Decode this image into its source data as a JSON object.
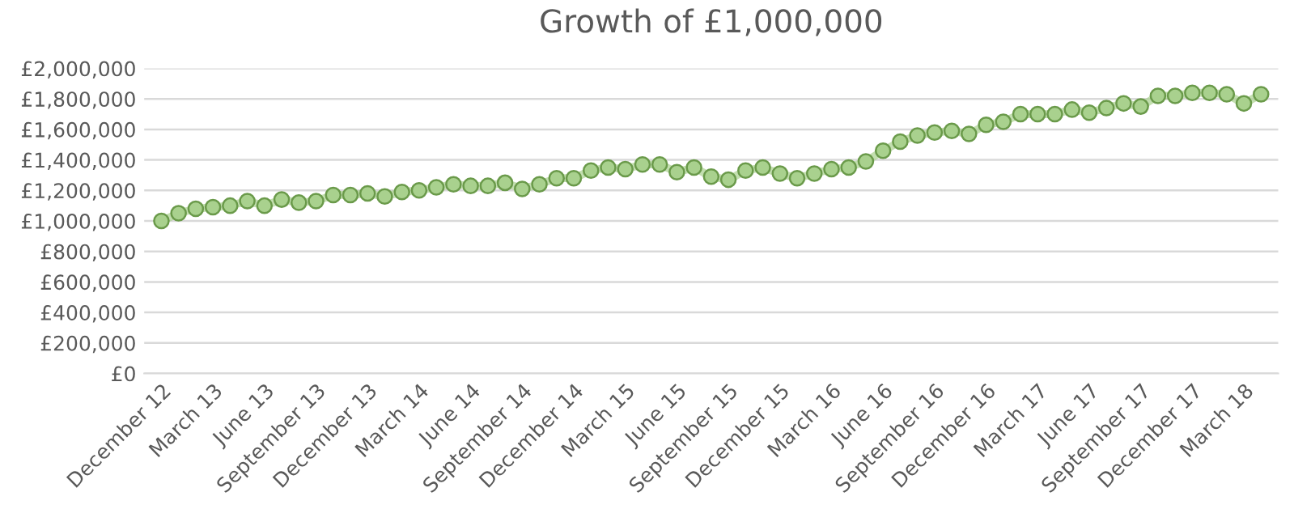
{
  "chart_data": {
    "type": "line",
    "title": "Growth of £1,000,000",
    "categories": [
      "December 12",
      null,
      null,
      "March 13",
      null,
      null,
      "June 13",
      null,
      null,
      "September 13",
      null,
      null,
      "December 13",
      null,
      null,
      "March 14",
      null,
      null,
      "June 14",
      null,
      null,
      "September 14",
      null,
      null,
      "December 14",
      null,
      null,
      "March 15",
      null,
      null,
      "June 15",
      null,
      null,
      "September 15",
      null,
      null,
      "December 15",
      null,
      null,
      "March 16",
      null,
      null,
      "June 16",
      null,
      null,
      "September 16",
      null,
      null,
      "December 16",
      null,
      null,
      "March 17",
      null,
      null,
      "June 17",
      null,
      null,
      "September 17",
      null,
      null,
      "December 17",
      null,
      null,
      "March 18",
      null
    ],
    "series": [
      {
        "color": "#a9d18e",
        "values": [
          1000000,
          1050000,
          1080000,
          1090000,
          1100000,
          1130000,
          1100000,
          1140000,
          1120000,
          1130000,
          1170000,
          1170000,
          1180000,
          1160000,
          1190000,
          1200000,
          1220000,
          1240000,
          1230000,
          1230000,
          1250000,
          1210000,
          1240000,
          1280000,
          1280000,
          1330000,
          1350000,
          1340000,
          1370000,
          1370000,
          1320000,
          1350000,
          1290000,
          1270000,
          1330000,
          1350000,
          1310000,
          1280000,
          1310000,
          1340000,
          1350000,
          1390000,
          1460000,
          1520000,
          1560000,
          1580000,
          1590000,
          1570000,
          1630000,
          1650000,
          1700000,
          1700000,
          1700000,
          1730000,
          1710000,
          1740000,
          1770000,
          1750000,
          1820000,
          1820000,
          1840000,
          1840000,
          1830000,
          1770000,
          1830000
        ]
      }
    ],
    "ylim": [
      0,
      2000000
    ],
    "yticks": [
      {
        "value": 0,
        "label": "£0"
      },
      {
        "value": 200000,
        "label": "£200,000"
      },
      {
        "value": 400000,
        "label": "£400,000"
      },
      {
        "value": 600000,
        "label": "£600,000"
      },
      {
        "value": 800000,
        "label": "£800,000"
      },
      {
        "value": 1000000,
        "label": "£1,000,000"
      },
      {
        "value": 1200000,
        "label": "£1,200,000"
      },
      {
        "value": 1400000,
        "label": "£1,400,000"
      },
      {
        "value": 1600000,
        "label": "£1,600,000"
      },
      {
        "value": 1800000,
        "label": "£1,800,000"
      },
      {
        "value": 2000000,
        "label": "£2,000,000"
      }
    ],
    "grid": "y",
    "marker": "circle",
    "line_style": "solid"
  }
}
